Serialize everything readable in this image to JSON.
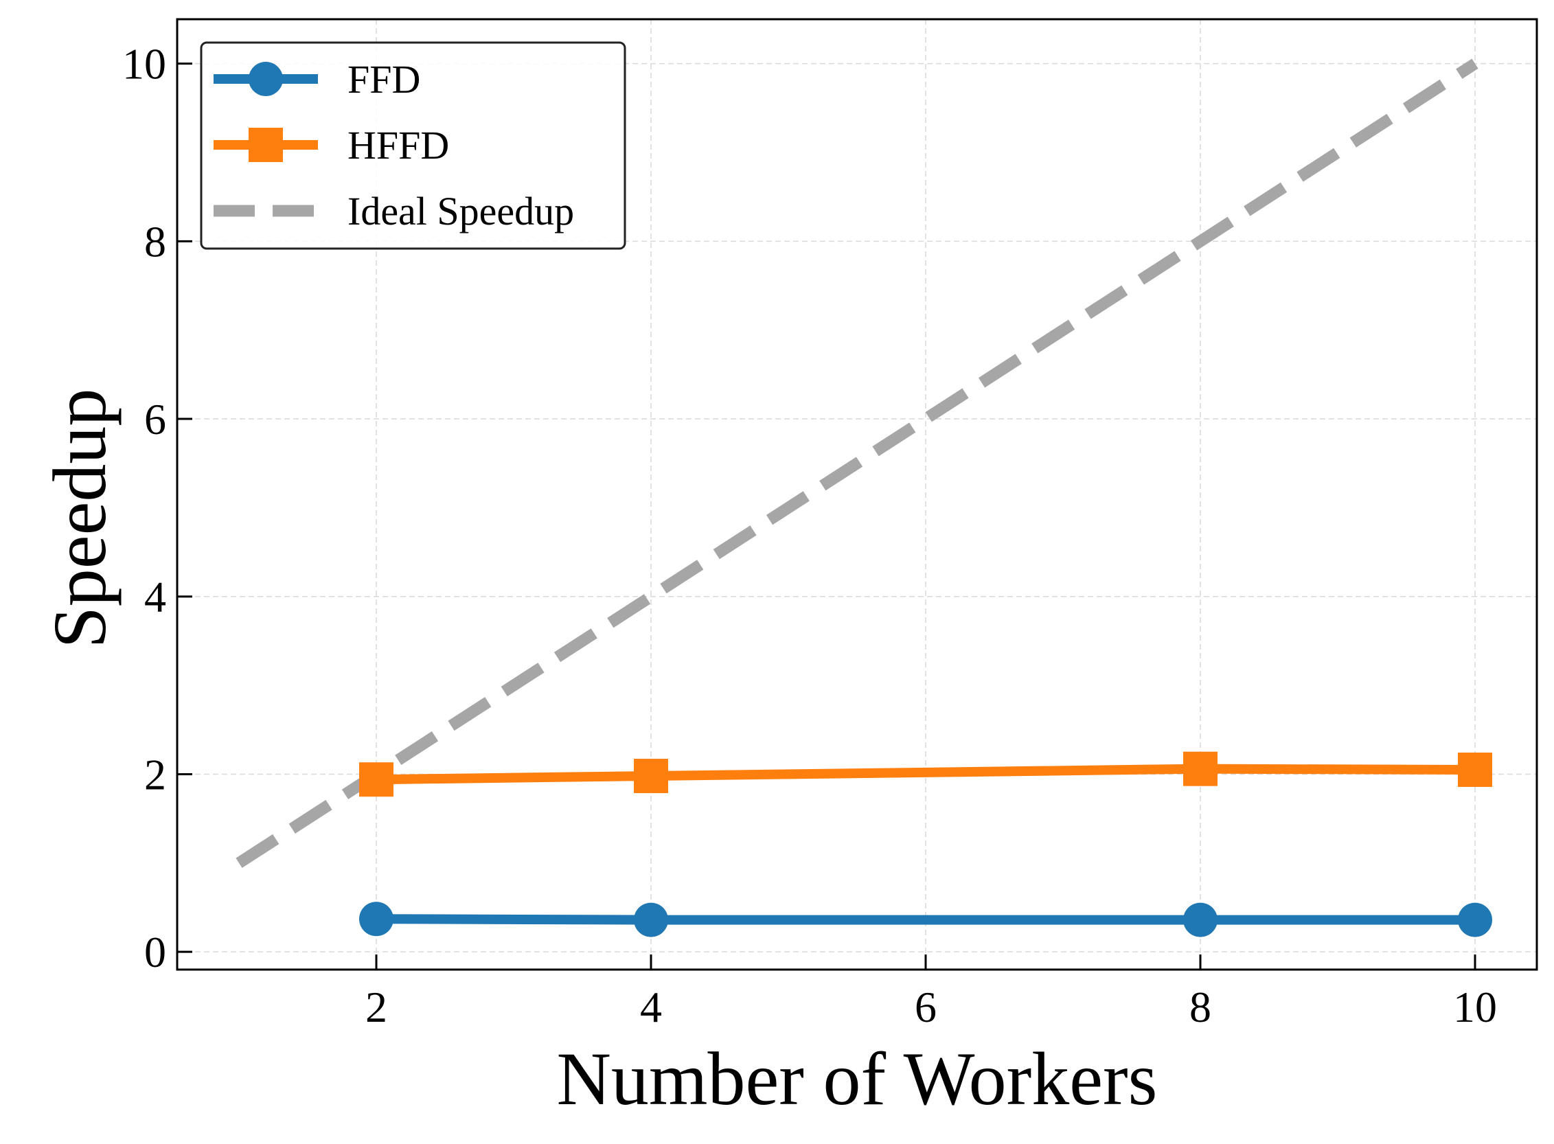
{
  "chart_data": {
    "type": "line",
    "title": "",
    "xlabel": "Number of Workers",
    "ylabel": "Speedup",
    "xlim": [
      0.55,
      10.45
    ],
    "ylim": [
      -0.2,
      10.5
    ],
    "xticks": [
      2,
      4,
      6,
      8,
      10
    ],
    "yticks": [
      0,
      2,
      4,
      6,
      8,
      10
    ],
    "x_tick_labels": [
      "2",
      "4",
      "6",
      "8",
      "10"
    ],
    "y_tick_labels": [
      "0",
      "2",
      "4",
      "6",
      "8",
      "10"
    ],
    "grid": true,
    "legend_position": "top-left",
    "series": [
      {
        "name": "FFD",
        "color": "#1f77b4",
        "marker": "circle",
        "style": "solid",
        "x": [
          2,
          4,
          8,
          10
        ],
        "y": [
          0.37,
          0.36,
          0.36,
          0.36
        ]
      },
      {
        "name": "HFFD",
        "color": "#ff7f0e",
        "marker": "square",
        "style": "solid",
        "x": [
          2,
          4,
          8,
          10
        ],
        "y": [
          1.94,
          1.98,
          2.06,
          2.05
        ]
      },
      {
        "name": "Ideal Speedup",
        "color": "#a6a6a6",
        "marker": "none",
        "style": "dashed",
        "x": [
          1,
          10
        ],
        "y": [
          1,
          10
        ]
      }
    ]
  }
}
